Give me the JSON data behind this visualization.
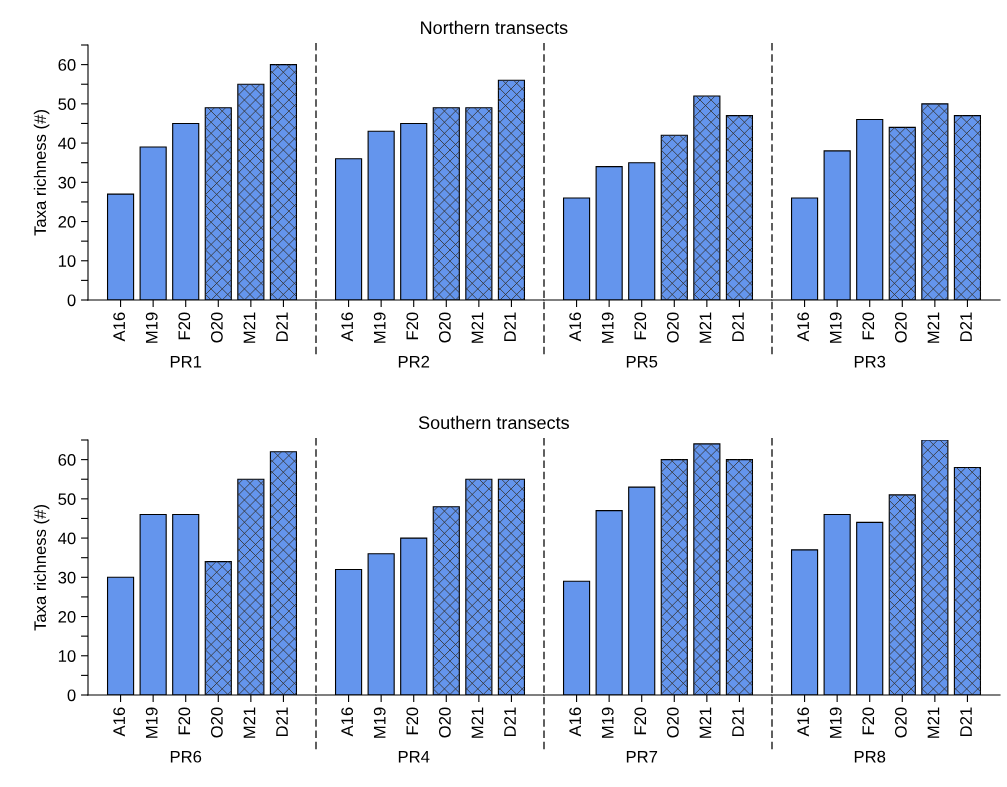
{
  "chart_data": [
    {
      "type": "bar",
      "ylabel": "Taxa richness (#)",
      "xlabel": "PR1",
      "categories": [
        "A16",
        "M19",
        "F20",
        "O20",
        "M21",
        "D21"
      ],
      "series": [
        {
          "color": "#6495ed",
          "values": [
            27,
            39,
            45,
            null,
            null,
            null
          ]
        },
        {
          "color": "#6495ed",
          "values": [
            null,
            null,
            null,
            49,
            55,
            60
          ]
        }
      ],
      "ylim": [
        0,
        65
      ],
      "yticks": [
        0,
        {
          "value": 5,
          "label": null
        },
        10,
        {
          "value": 15,
          "label": null
        },
        20,
        {
          "value": 25,
          "label": null
        },
        30,
        {
          "value": 35,
          "label": null
        },
        40,
        {
          "value": 45,
          "label": null
        },
        50,
        {
          "value": 55,
          "label": null
        },
        60,
        {
          "value": 65,
          "label": null
        }
      ]
    },
    {
      "type": "bar",
      "title": "Northern transects",
      "xlabel": "PR2",
      "categories": [
        "A16",
        "M19",
        "F20",
        "O20",
        "M21",
        "D21"
      ],
      "series": [
        {
          "color": "#6495ed",
          "values": [
            36,
            43,
            45,
            null,
            null,
            null
          ]
        },
        {
          "color": "#6495ed",
          "values": [
            null,
            null,
            null,
            49,
            49,
            56
          ]
        }
      ],
      "ylim": [
        0,
        65
      ],
      "tick_labels": "x"
    },
    {
      "type": "bar",
      "xlabel": "PR5",
      "categories": [
        "A16",
        "M19",
        "F20",
        "O20",
        "M21",
        "D21"
      ],
      "series": [
        {
          "color": "#6495ed",
          "values": [
            26,
            34,
            35,
            null,
            null,
            null
          ]
        },
        {
          "color": "#6495ed",
          "values": [
            null,
            null,
            null,
            42,
            52,
            47
          ]
        }
      ],
      "ylim": [
        0,
        65
      ],
      "tick_labels": "x"
    },
    {
      "type": "bar",
      "xlabel": "PR3",
      "categories": [
        "A16",
        "M19",
        "F20",
        "O20",
        "M21",
        "D21"
      ],
      "series": [
        {
          "color": "#6495ed",
          "values": [
            26,
            38,
            46,
            null,
            null,
            null
          ]
        },
        {
          "color": "#6495ed",
          "values": [
            null,
            null,
            null,
            44,
            50,
            47
          ]
        }
      ],
      "ylim": [
        0,
        65
      ],
      "tick_labels": "x"
    },
    {
      "type": "bar",
      "ylabel": "Taxa richness (#)",
      "xlabel": "PR6",
      "categories": [
        "A16",
        "M19",
        "F20",
        "O20",
        "M21",
        "D21"
      ],
      "series": [
        {
          "color": "#6495ed",
          "values": [
            30,
            46,
            46,
            null,
            null,
            null
          ]
        },
        {
          "color": "#6495ed",
          "values": [
            null,
            null,
            null,
            34,
            55,
            62
          ]
        }
      ],
      "ylim": [
        0,
        65
      ],
      "yticks": [
        0,
        {
          "value": 5,
          "label": null
        },
        10,
        {
          "value": 15,
          "label": null
        },
        20,
        {
          "value": 25,
          "label": null
        },
        30,
        {
          "value": 35,
          "label": null
        },
        40,
        {
          "value": 45,
          "label": null
        },
        50,
        {
          "value": 55,
          "label": null
        },
        60,
        {
          "value": 65,
          "label": null
        }
      ]
    },
    {
      "type": "bar",
      "title": "Southern transects",
      "xlabel": "PR4",
      "categories": [
        "A16",
        "M19",
        "F20",
        "O20",
        "M21",
        "D21"
      ],
      "series": [
        {
          "color": "#6495ed",
          "values": [
            32,
            36,
            40,
            null,
            null,
            null
          ]
        },
        {
          "color": "#6495ed",
          "values": [
            null,
            null,
            null,
            48,
            55,
            55
          ]
        }
      ],
      "ylim": [
        0,
        65
      ],
      "tick_labels": "x"
    },
    {
      "type": "bar",
      "xlabel": "PR7",
      "categories": [
        "A16",
        "M19",
        "F20",
        "O20",
        "M21",
        "D21"
      ],
      "series": [
        {
          "color": "#6495ed",
          "values": [
            29,
            47,
            53,
            null,
            null,
            null
          ]
        },
        {
          "color": "#6495ed",
          "values": [
            null,
            null,
            null,
            60,
            64,
            60
          ]
        }
      ],
      "ylim": [
        0,
        65
      ],
      "tick_labels": "x"
    },
    {
      "type": "bar",
      "xlabel": "PR8",
      "categories": [
        "A16",
        "M19",
        "F20",
        "O20",
        "M21",
        "D21"
      ],
      "series": [
        {
          "color": "#6495ed",
          "values": [
            37,
            46,
            44,
            null,
            null,
            null
          ]
        },
        {
          "color": "#6495ed",
          "values": [
            null,
            null,
            null,
            51,
            65,
            58
          ]
        }
      ],
      "ylim": [
        0,
        65
      ],
      "tick_labels": "x"
    }
  ]
}
